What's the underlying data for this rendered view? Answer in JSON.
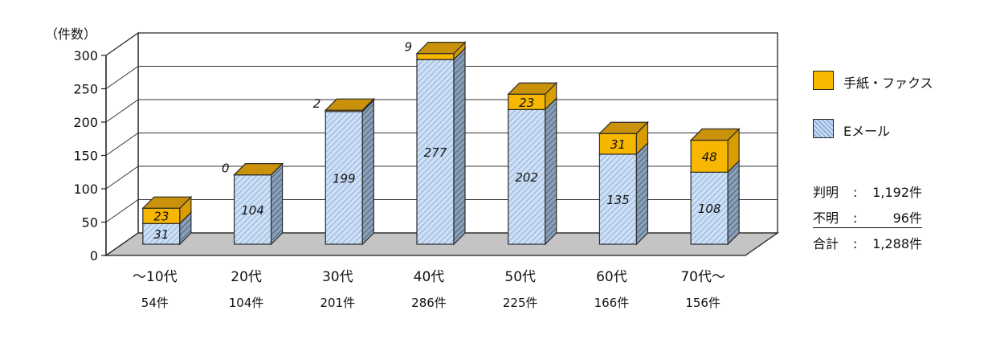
{
  "chart_data": {
    "type": "bar",
    "stacked": true,
    "three_d": true,
    "y_unit_label": "（件数）",
    "ylim": [
      0,
      300
    ],
    "yticks": [
      0,
      50,
      100,
      150,
      200,
      250,
      300
    ],
    "grid": true,
    "legend_position": "right",
    "categories": [
      "～10代",
      "20代",
      "30代",
      "40代",
      "50代",
      "60代",
      "70代～"
    ],
    "category_totals": [
      "54件",
      "104件",
      "201件",
      "286件",
      "225件",
      "166件",
      "156件"
    ],
    "series": [
      {
        "name": "Eメール",
        "values": [
          31,
          104,
          199,
          277,
          202,
          135,
          108
        ],
        "labels": [
          "31",
          "104",
          "199",
          "277",
          "202",
          "135",
          "108"
        ]
      },
      {
        "name": "手紙・ファクス",
        "values": [
          23,
          0,
          2,
          9,
          23,
          31,
          48
        ],
        "labels": [
          "23",
          "0",
          "2",
          "9",
          "23",
          "31",
          "48"
        ]
      }
    ]
  },
  "legend": {
    "letter_label": "手紙・ファクス",
    "email_label": "Eメール"
  },
  "summary": {
    "rows": [
      {
        "name": "判明",
        "colon": ":",
        "value": "1,192件"
      },
      {
        "name": "不明",
        "colon": ":",
        "value": "96件"
      },
      {
        "name": "合計",
        "colon": ":",
        "value": "1,288件"
      }
    ]
  },
  "colors": {
    "email_fill": "#c9dcf3",
    "email_hatch": "#7fa6d6",
    "letter_fill": "#f7b700",
    "letter_top": "#c9920a",
    "floor": "#c4c4c4"
  }
}
